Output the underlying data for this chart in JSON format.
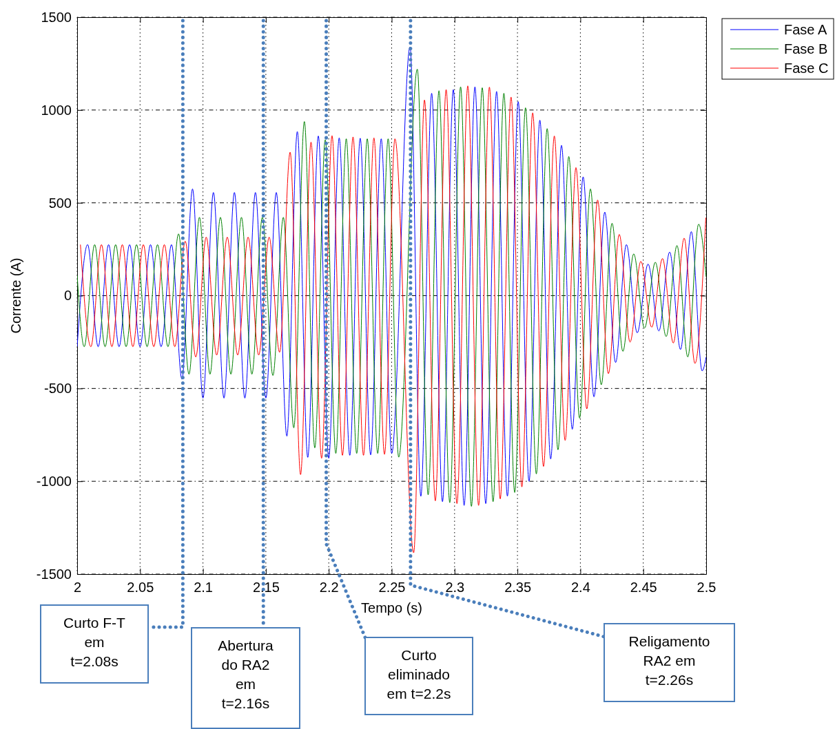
{
  "chart_data": {
    "type": "line",
    "xlabel": "Tempo (s)",
    "ylabel": "Corrente (A)",
    "xlim": [
      2,
      2.5
    ],
    "xticks": [
      2,
      2.05,
      2.1,
      2.15,
      2.2,
      2.25,
      2.3,
      2.35,
      2.4,
      2.45,
      2.5
    ],
    "ylim": [
      -1500,
      1500
    ],
    "yticks": [
      -1500,
      -1000,
      -500,
      0,
      500,
      1000,
      1500
    ],
    "grid": true,
    "legend": "top right",
    "line_style": "solid",
    "marker": "none",
    "series": [
      {
        "name": "Fase A",
        "color": "#0000ff",
        "x": [
          2.0,
          2.0083,
          2.0167,
          2.025,
          2.0333,
          2.0417,
          2.05,
          2.0583,
          2.0667,
          2.075,
          2.0833,
          2.0917,
          2.1,
          2.1083,
          2.1167,
          2.125,
          2.1333,
          2.1417,
          2.15,
          2.1583,
          2.1667,
          2.175,
          2.1833,
          2.1917,
          2.2,
          2.2083,
          2.2167,
          2.225,
          2.2333,
          2.2417,
          2.25,
          2.2646,
          2.2732,
          2.2818,
          2.2904,
          2.299,
          2.3076,
          2.3162,
          2.3248,
          2.3334,
          2.342,
          2.3506,
          2.3592,
          2.3678,
          2.3764,
          2.385,
          2.3936,
          2.4022,
          2.4108,
          2.4194,
          2.428,
          2.4366,
          2.4452,
          2.4538,
          2.4624,
          2.471,
          2.4796,
          2.4882,
          2.4968,
          2.5
        ],
        "values": [
          -275,
          275,
          -275,
          275,
          -275,
          275,
          -275,
          275,
          -275,
          275,
          -450,
          575,
          -552,
          556,
          -552,
          556,
          -552,
          556,
          -552,
          556,
          -757,
          884,
          -871,
          860,
          -876,
          850,
          -860,
          848,
          -858,
          845,
          -850,
          1340,
          -1081,
          1090,
          -1110,
          1110,
          -1130,
          1125,
          -1120,
          1100,
          -1080,
          1045,
          -1000,
          945,
          -880,
          810,
          -720,
          640,
          -545,
          450,
          -360,
          275,
          -200,
          170,
          -190,
          235,
          -290,
          345,
          -405,
          -330
        ]
      },
      {
        "name": "Fase B",
        "color": "#008000",
        "x": [
          2.0,
          2.0056,
          2.0139,
          2.0222,
          2.0306,
          2.0389,
          2.0472,
          2.0556,
          2.0639,
          2.0722,
          2.0806,
          2.0889,
          2.0972,
          2.1056,
          2.1139,
          2.1222,
          2.1306,
          2.1389,
          2.1472,
          2.1556,
          2.1639,
          2.1722,
          2.1806,
          2.1889,
          2.1972,
          2.2056,
          2.2139,
          2.2222,
          2.2306,
          2.2389,
          2.2472,
          2.2556,
          2.2704,
          2.279,
          2.2876,
          2.2962,
          2.3048,
          2.3134,
          2.322,
          2.3306,
          2.3392,
          2.3478,
          2.3564,
          2.365,
          2.3736,
          2.3822,
          2.3908,
          2.3994,
          2.408,
          2.4166,
          2.4252,
          2.4338,
          2.4424,
          2.451,
          2.4596,
          2.4682,
          2.4768,
          2.4854,
          2.494,
          2.5
        ],
        "values": [
          110,
          -275,
          275,
          -275,
          275,
          -275,
          275,
          -275,
          275,
          -275,
          333,
          -423,
          422,
          -423,
          422,
          -423,
          422,
          -423,
          422,
          -430,
          422,
          -712,
          938,
          -820,
          840,
          -850,
          845,
          -850,
          845,
          -850,
          845,
          -870,
          1220,
          -1073,
          1104,
          -1115,
          1125,
          -1135,
          1120,
          -1110,
          1090,
          -1060,
          1012,
          -960,
          900,
          -830,
          750,
          -660,
          575,
          -480,
          390,
          -300,
          225,
          -175,
          180,
          -220,
          270,
          -330,
          385,
          100
        ]
      },
      {
        "name": "Fase C",
        "color": "#ff0000",
        "x": [
          2.0026,
          2.0109,
          2.0193,
          2.0276,
          2.0359,
          2.0443,
          2.0526,
          2.0609,
          2.0693,
          2.0776,
          2.0859,
          2.0943,
          2.1026,
          2.1109,
          2.1193,
          2.1276,
          2.1359,
          2.1443,
          2.1526,
          2.1609,
          2.1693,
          2.1776,
          2.1859,
          2.1943,
          2.2026,
          2.2109,
          2.2193,
          2.2276,
          2.2359,
          2.2443,
          2.2526,
          2.2675,
          2.2761,
          2.2847,
          2.2933,
          2.3019,
          2.3105,
          2.3191,
          2.3277,
          2.3363,
          2.3449,
          2.3535,
          2.3621,
          2.3707,
          2.3793,
          2.3879,
          2.3965,
          2.4051,
          2.4137,
          2.4223,
          2.4309,
          2.4395,
          2.4481,
          2.4567,
          2.4653,
          2.4739,
          2.4825,
          2.4911,
          2.4997
        ],
        "values": [
          275,
          -275,
          275,
          -275,
          275,
          -275,
          275,
          -275,
          275,
          -275,
          293,
          -330,
          315,
          -320,
          315,
          -320,
          315,
          -320,
          315,
          -305,
          773,
          -964,
          827,
          -876,
          862,
          -860,
          855,
          -860,
          850,
          -855,
          845,
          -1385,
          1054,
          -1105,
          1110,
          -1120,
          1130,
          -1130,
          1123,
          -1095,
          1070,
          -1030,
          985,
          -920,
          860,
          -780,
          690,
          -610,
          515,
          -420,
          330,
          -250,
          185,
          -170,
          200,
          -255,
          310,
          -365,
          420
        ]
      }
    ],
    "ref_lines": [
      {
        "axis": "x",
        "value": 2.084,
        "label": "Curto F-T\nem\nt=2.08s",
        "color": "#4a7ebb",
        "line_style": "dotted"
      },
      {
        "axis": "x",
        "value": 2.148,
        "label": "Abertura\ndo RA2\nem\nt=2.16s",
        "color": "#4a7ebb",
        "line_style": "dotted"
      },
      {
        "axis": "x",
        "value": 2.198,
        "label": "Curto\neliminado\nem t=2.2s",
        "color": "#4a7ebb",
        "line_style": "dotted"
      },
      {
        "axis": "x",
        "value": 2.265,
        "label": "Religamento\nRA2 em\nt=2.26s",
        "color": "#4a7ebb",
        "line_style": "dotted"
      }
    ]
  }
}
